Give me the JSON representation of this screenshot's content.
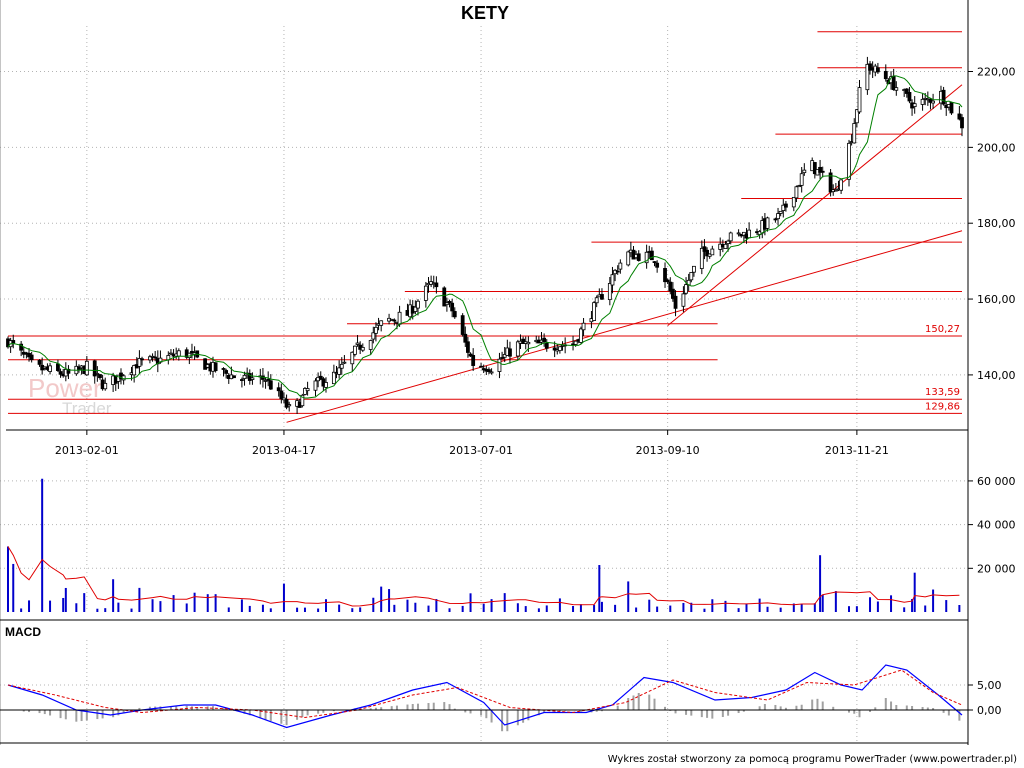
{
  "chart_data": {
    "type": "candlestick",
    "title": "KETY",
    "x_tick_labels": [
      "2013-02-01",
      "2013-04-17",
      "2013-07-01",
      "2013-09-10",
      "2013-11-21"
    ],
    "x_range": [
      "2013-01-02",
      "2013-12-31"
    ],
    "price": {
      "y_ticks": [
        140,
        160,
        180,
        200,
        220
      ],
      "y_tick_labels": [
        "140,00",
        "160,00",
        "180,00",
        "200,00",
        "220,00"
      ],
      "ylim": [
        126,
        232
      ],
      "close_path": [
        [
          "2013-01-02",
          149
        ],
        [
          "2013-01-12",
          142
        ],
        [
          "2013-01-25",
          140
        ],
        [
          "2013-02-01",
          142
        ],
        [
          "2013-02-08",
          137
        ],
        [
          "2013-02-20",
          143
        ],
        [
          "2013-03-01",
          144
        ],
        [
          "2013-03-10",
          146
        ],
        [
          "2013-03-20",
          142
        ],
        [
          "2013-03-31",
          139
        ],
        [
          "2013-04-10",
          139
        ],
        [
          "2013-04-20",
          130
        ],
        [
          "2013-04-27",
          137
        ],
        [
          "2013-05-07",
          140
        ],
        [
          "2013-05-15",
          147
        ],
        [
          "2013-05-25",
          154
        ],
        [
          "2013-06-03",
          156
        ],
        [
          "2013-06-12",
          164
        ],
        [
          "2013-06-20",
          157
        ],
        [
          "2013-06-28",
          143
        ],
        [
          "2013-07-05",
          142
        ],
        [
          "2013-07-15",
          148
        ],
        [
          "2013-07-25",
          148
        ],
        [
          "2013-08-05",
          148
        ],
        [
          "2013-08-15",
          160
        ],
        [
          "2013-08-25",
          172
        ],
        [
          "2013-09-05",
          171
        ],
        [
          "2013-09-10",
          164
        ],
        [
          "2013-09-13",
          158
        ],
        [
          "2013-09-23",
          172
        ],
        [
          "2013-10-03",
          176
        ],
        [
          "2013-10-13",
          178
        ],
        [
          "2013-10-23",
          182
        ],
        [
          "2013-11-03",
          196
        ],
        [
          "2013-11-13",
          188
        ],
        [
          "2013-11-19",
          203
        ],
        [
          "2013-11-24",
          222
        ],
        [
          "2013-12-03",
          218
        ],
        [
          "2013-12-13",
          211
        ],
        [
          "2013-12-23",
          214
        ],
        [
          "2013-12-31",
          206
        ]
      ],
      "level_lines": [
        {
          "value": 230.5,
          "from": "2013-11-06",
          "to": "2013-12-31",
          "label": ""
        },
        {
          "value": 221,
          "from": "2013-11-06",
          "to": "2013-12-31",
          "label": ""
        },
        {
          "value": 203.5,
          "from": "2013-10-21",
          "to": "2013-12-31",
          "label": ""
        },
        {
          "value": 186.5,
          "from": "2013-10-08",
          "to": "2013-12-31",
          "label": ""
        },
        {
          "value": 175,
          "from": "2013-08-12",
          "to": "2013-12-31",
          "label": ""
        },
        {
          "value": 162,
          "from": "2013-06-02",
          "to": "2013-12-31",
          "label": ""
        },
        {
          "value": 153.5,
          "from": "2013-05-11",
          "to": "2013-09-29",
          "label": ""
        },
        {
          "value": 150.27,
          "from": "2013-01-02",
          "to": "2013-12-31",
          "label": "150,27"
        },
        {
          "value": 144,
          "from": "2013-01-02",
          "to": "2013-09-29",
          "label": ""
        },
        {
          "value": 133.59,
          "from": "2013-01-02",
          "to": "2013-12-31",
          "label": "133,59"
        },
        {
          "value": 129.86,
          "from": "2013-01-02",
          "to": "2013-12-31",
          "label": "129,86"
        }
      ],
      "trend_lines": [
        {
          "from": [
            "2013-04-18",
            127.5
          ],
          "to": [
            "2013-12-31",
            178
          ]
        },
        {
          "from": [
            "2013-09-10",
            153
          ],
          "to": [
            "2013-12-31",
            216.5
          ]
        }
      ]
    },
    "volume": {
      "y_ticks": [
        20000,
        40000,
        60000
      ],
      "y_tick_labels": [
        "20 000",
        "40 000",
        "60 000"
      ],
      "ylim": [
        0,
        65000
      ],
      "spikes": [
        [
          "2013-01-02",
          30000
        ],
        [
          "2013-01-04",
          22000
        ],
        [
          "2013-01-06",
          17000
        ],
        [
          "2013-01-15",
          61000
        ],
        [
          "2013-01-24",
          11000
        ],
        [
          "2013-02-11",
          15000
        ],
        [
          "2013-04-17",
          13000
        ],
        [
          "2013-05-27",
          10500
        ],
        [
          "2013-08-15",
          21500
        ],
        [
          "2013-08-26",
          14000
        ],
        [
          "2013-11-03",
          20000
        ],
        [
          "2013-11-07",
          26000
        ],
        [
          "2013-11-10",
          17000
        ],
        [
          "2013-12-13",
          18000
        ]
      ]
    },
    "macd": {
      "label": "MACD",
      "y_ticks": [
        0,
        5
      ],
      "y_tick_labels": [
        "0,00",
        "5,00"
      ],
      "ylim": [
        -6,
        12
      ],
      "macd_line": [
        [
          "2013-01-02",
          5
        ],
        [
          "2013-01-15",
          3
        ],
        [
          "2013-01-28",
          0
        ],
        [
          "2013-02-10",
          -1
        ],
        [
          "2013-02-22",
          0
        ],
        [
          "2013-03-10",
          1
        ],
        [
          "2013-03-22",
          1
        ],
        [
          "2013-04-05",
          -1
        ],
        [
          "2013-04-18",
          -3.5
        ],
        [
          "2013-05-05",
          -1
        ],
        [
          "2013-05-20",
          1
        ],
        [
          "2013-06-05",
          4
        ],
        [
          "2013-06-18",
          5.5
        ],
        [
          "2013-07-02",
          1.5
        ],
        [
          "2013-07-10",
          -3
        ],
        [
          "2013-07-25",
          -0.5
        ],
        [
          "2013-08-10",
          -0.5
        ],
        [
          "2013-08-20",
          1
        ],
        [
          "2013-09-01",
          6.5
        ],
        [
          "2013-09-12",
          5.5
        ],
        [
          "2013-09-28",
          2
        ],
        [
          "2013-10-12",
          2.5
        ],
        [
          "2013-10-25",
          4
        ],
        [
          "2013-11-05",
          7.5
        ],
        [
          "2013-11-15",
          5
        ],
        [
          "2013-11-23",
          4
        ],
        [
          "2013-12-02",
          9
        ],
        [
          "2013-12-10",
          8
        ],
        [
          "2013-12-22",
          3
        ],
        [
          "2013-12-31",
          -1
        ]
      ],
      "signal_line": [
        [
          "2013-01-02",
          5
        ],
        [
          "2013-01-20",
          3
        ],
        [
          "2013-02-08",
          0.5
        ],
        [
          "2013-02-22",
          -0.5
        ],
        [
          "2013-03-15",
          0.5
        ],
        [
          "2013-04-05",
          0
        ],
        [
          "2013-04-25",
          -1.5
        ],
        [
          "2013-05-15",
          0
        ],
        [
          "2013-06-05",
          3
        ],
        [
          "2013-06-22",
          4.5
        ],
        [
          "2013-07-12",
          0.5
        ],
        [
          "2013-08-05",
          -0.5
        ],
        [
          "2013-08-25",
          1.5
        ],
        [
          "2013-09-12",
          6
        ],
        [
          "2013-09-28",
          3.5
        ],
        [
          "2013-10-18",
          2
        ],
        [
          "2013-11-02",
          5.5
        ],
        [
          "2013-11-20",
          5
        ],
        [
          "2013-12-08",
          8
        ],
        [
          "2013-12-20",
          3.5
        ],
        [
          "2013-12-31",
          1
        ]
      ]
    },
    "footer_text": "Wykres został stworzony za pomocą programu PowerTrader (www.powertrader.pl)",
    "watermark": [
      "Power",
      "Trader"
    ],
    "colors": {
      "candle": "#000000",
      "moving_average": "#008000",
      "level_line": "#e00000",
      "volume_bar": "#0000cc",
      "volume_average": "#e00000",
      "macd_line": "#0000ff",
      "signal_line": "#e00000",
      "histogram": "#a0a0a0",
      "grid": "#b4b4b4"
    }
  }
}
